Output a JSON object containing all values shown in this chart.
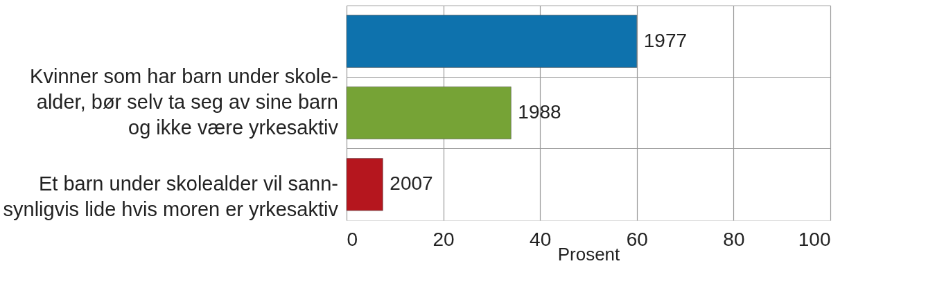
{
  "chart_data": {
    "type": "bar",
    "orientation": "horizontal",
    "categories": [
      "1977",
      "1988",
      "2007"
    ],
    "values": [
      60,
      34,
      7.5
    ],
    "colors": [
      "#0e72ad",
      "#76a336",
      "#b5161e"
    ],
    "xlabel": "Prosent",
    "xlim": [
      0,
      100
    ],
    "xticks": [
      0,
      20,
      40,
      60,
      80,
      100
    ],
    "grid": true,
    "annotations": [
      "Kvinner som har barn under skole-\nalder, bør selv ta seg av sine barn\nog ikke være yrkesaktiv",
      "Et barn under skolealder vil sann-\nsynligvis lide hvis moren er yrkesaktiv"
    ]
  }
}
